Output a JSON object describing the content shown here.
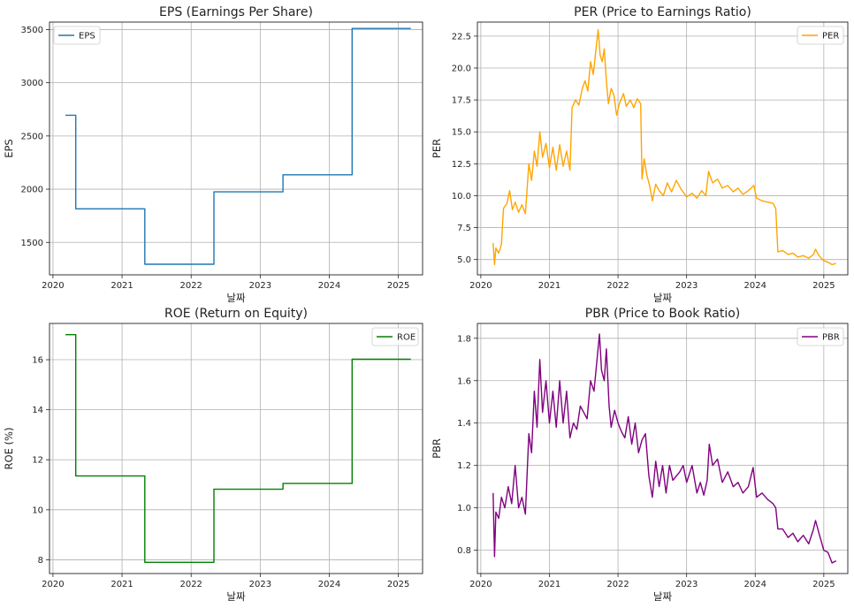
{
  "chart_data": [
    {
      "id": "eps",
      "type": "line",
      "step": true,
      "title": "EPS (Earnings Per Share)",
      "xlabel": "날짜",
      "ylabel": "EPS",
      "xlim": [
        2019.95,
        2025.35
      ],
      "ylim": [
        1195,
        3570
      ],
      "x_ticks": [
        2020,
        2021,
        2022,
        2023,
        2024,
        2025
      ],
      "y_ticks": [
        1500,
        2000,
        2500,
        3000,
        3500
      ],
      "grid": true,
      "legend": "top-left",
      "series": [
        {
          "name": "EPS",
          "color": "#1f77b4",
          "points": [
            [
              2020.18,
              2695
            ],
            [
              2020.33,
              2695
            ],
            [
              2020.33,
              1815
            ],
            [
              2021.33,
              1815
            ],
            [
              2021.33,
              1295
            ],
            [
              2022.33,
              1295
            ],
            [
              2022.33,
              1975
            ],
            [
              2023.33,
              1975
            ],
            [
              2023.33,
              2135
            ],
            [
              2024.33,
              2135
            ],
            [
              2024.33,
              3510
            ],
            [
              2025.18,
              3510
            ]
          ]
        }
      ]
    },
    {
      "id": "per",
      "type": "line",
      "title": "PER (Price to Earnings Ratio)",
      "xlabel": "날짜",
      "ylabel": "PER",
      "xlim": [
        2019.95,
        2025.35
      ],
      "ylim": [
        3.8,
        23.6
      ],
      "x_ticks": [
        2020,
        2021,
        2022,
        2023,
        2024,
        2025
      ],
      "y_ticks": [
        5.0,
        7.5,
        10.0,
        12.5,
        15.0,
        17.5,
        20.0,
        22.5
      ],
      "grid": true,
      "legend": "top-right",
      "series": [
        {
          "name": "PER",
          "color": "#ffa500",
          "points": [
            [
              2020.18,
              6.3
            ],
            [
              2020.2,
              4.6
            ],
            [
              2020.22,
              5.9
            ],
            [
              2020.26,
              5.5
            ],
            [
              2020.3,
              6.2
            ],
            [
              2020.33,
              9.0
            ],
            [
              2020.38,
              9.4
            ],
            [
              2020.42,
              10.4
            ],
            [
              2020.46,
              8.9
            ],
            [
              2020.5,
              9.5
            ],
            [
              2020.55,
              8.7
            ],
            [
              2020.6,
              9.3
            ],
            [
              2020.65,
              8.6
            ],
            [
              2020.7,
              12.5
            ],
            [
              2020.74,
              11.2
            ],
            [
              2020.78,
              13.5
            ],
            [
              2020.82,
              12.3
            ],
            [
              2020.86,
              15.0
            ],
            [
              2020.9,
              13.0
            ],
            [
              2020.95,
              14.1
            ],
            [
              2021.0,
              12.2
            ],
            [
              2021.05,
              13.8
            ],
            [
              2021.1,
              12.0
            ],
            [
              2021.15,
              14.0
            ],
            [
              2021.2,
              12.3
            ],
            [
              2021.25,
              13.5
            ],
            [
              2021.3,
              12.0
            ],
            [
              2021.33,
              16.9
            ],
            [
              2021.38,
              17.5
            ],
            [
              2021.43,
              17.1
            ],
            [
              2021.48,
              18.4
            ],
            [
              2021.52,
              19.0
            ],
            [
              2021.56,
              18.2
            ],
            [
              2021.6,
              20.5
            ],
            [
              2021.64,
              19.5
            ],
            [
              2021.68,
              21.5
            ],
            [
              2021.71,
              23.0
            ],
            [
              2021.74,
              21.0
            ],
            [
              2021.77,
              20.5
            ],
            [
              2021.8,
              21.5
            ],
            [
              2021.83,
              19.0
            ],
            [
              2021.86,
              17.2
            ],
            [
              2021.9,
              18.4
            ],
            [
              2021.94,
              17.9
            ],
            [
              2021.98,
              16.3
            ],
            [
              2022.02,
              17.2
            ],
            [
              2022.08,
              18.0
            ],
            [
              2022.12,
              17.0
            ],
            [
              2022.18,
              17.5
            ],
            [
              2022.23,
              16.9
            ],
            [
              2022.28,
              17.6
            ],
            [
              2022.33,
              17.2
            ],
            [
              2022.35,
              11.3
            ],
            [
              2022.38,
              12.9
            ],
            [
              2022.42,
              11.6
            ],
            [
              2022.46,
              10.8
            ],
            [
              2022.5,
              9.6
            ],
            [
              2022.55,
              10.9
            ],
            [
              2022.6,
              10.4
            ],
            [
              2022.66,
              10.0
            ],
            [
              2022.72,
              11.0
            ],
            [
              2022.78,
              10.3
            ],
            [
              2022.85,
              11.2
            ],
            [
              2022.92,
              10.5
            ],
            [
              2023.0,
              9.9
            ],
            [
              2023.08,
              10.2
            ],
            [
              2023.15,
              9.8
            ],
            [
              2023.22,
              10.4
            ],
            [
              2023.28,
              10.0
            ],
            [
              2023.32,
              11.9
            ],
            [
              2023.38,
              11.0
            ],
            [
              2023.45,
              11.3
            ],
            [
              2023.52,
              10.6
            ],
            [
              2023.6,
              10.8
            ],
            [
              2023.68,
              10.3
            ],
            [
              2023.75,
              10.6
            ],
            [
              2023.82,
              10.1
            ],
            [
              2023.9,
              10.4
            ],
            [
              2023.98,
              10.8
            ],
            [
              2024.02,
              9.8
            ],
            [
              2024.1,
              9.6
            ],
            [
              2024.18,
              9.5
            ],
            [
              2024.26,
              9.4
            ],
            [
              2024.3,
              9.0
            ],
            [
              2024.33,
              5.6
            ],
            [
              2024.4,
              5.7
            ],
            [
              2024.48,
              5.4
            ],
            [
              2024.55,
              5.5
            ],
            [
              2024.62,
              5.2
            ],
            [
              2024.7,
              5.3
            ],
            [
              2024.78,
              5.1
            ],
            [
              2024.85,
              5.4
            ],
            [
              2024.88,
              5.8
            ],
            [
              2024.93,
              5.3
            ],
            [
              2025.0,
              4.9
            ],
            [
              2025.06,
              4.8
            ],
            [
              2025.12,
              4.6
            ],
            [
              2025.18,
              4.7
            ]
          ]
        }
      ]
    },
    {
      "id": "roe",
      "type": "line",
      "step": true,
      "title": "ROE (Return on Equity)",
      "xlabel": "날짜",
      "ylabel": "ROE (%)",
      "xlim": [
        2019.95,
        2025.35
      ],
      "ylim": [
        7.45,
        17.45
      ],
      "x_ticks": [
        2020,
        2021,
        2022,
        2023,
        2024,
        2025
      ],
      "y_ticks": [
        8,
        10,
        12,
        14,
        16
      ],
      "grid": true,
      "legend": "top-right",
      "series": [
        {
          "name": "ROE",
          "color": "#008000",
          "points": [
            [
              2020.18,
              17.0
            ],
            [
              2020.33,
              17.0
            ],
            [
              2020.33,
              11.35
            ],
            [
              2021.33,
              11.35
            ],
            [
              2021.33,
              7.9
            ],
            [
              2022.33,
              7.9
            ],
            [
              2022.33,
              10.82
            ],
            [
              2023.33,
              10.82
            ],
            [
              2023.33,
              11.05
            ],
            [
              2024.33,
              11.05
            ],
            [
              2024.33,
              16.02
            ],
            [
              2025.18,
              16.02
            ]
          ]
        }
      ]
    },
    {
      "id": "pbr",
      "type": "line",
      "title": "PBR (Price to Book Ratio)",
      "xlabel": "날짜",
      "ylabel": "PBR",
      "xlim": [
        2019.95,
        2025.35
      ],
      "ylim": [
        0.69,
        1.87
      ],
      "x_ticks": [
        2020,
        2021,
        2022,
        2023,
        2024,
        2025
      ],
      "y_ticks": [
        0.8,
        1.0,
        1.2,
        1.4,
        1.6,
        1.8
      ],
      "grid": true,
      "legend": "top-right",
      "series": [
        {
          "name": "PBR",
          "color": "#800080",
          "points": [
            [
              2020.18,
              1.07
            ],
            [
              2020.2,
              0.77
            ],
            [
              2020.22,
              0.98
            ],
            [
              2020.26,
              0.95
            ],
            [
              2020.3,
              1.05
            ],
            [
              2020.35,
              1.0
            ],
            [
              2020.4,
              1.1
            ],
            [
              2020.45,
              1.02
            ],
            [
              2020.5,
              1.2
            ],
            [
              2020.55,
              1.0
            ],
            [
              2020.6,
              1.05
            ],
            [
              2020.65,
              0.97
            ],
            [
              2020.7,
              1.35
            ],
            [
              2020.74,
              1.26
            ],
            [
              2020.78,
              1.55
            ],
            [
              2020.82,
              1.38
            ],
            [
              2020.86,
              1.7
            ],
            [
              2020.9,
              1.45
            ],
            [
              2020.95,
              1.6
            ],
            [
              2021.0,
              1.4
            ],
            [
              2021.05,
              1.55
            ],
            [
              2021.1,
              1.38
            ],
            [
              2021.15,
              1.6
            ],
            [
              2021.2,
              1.4
            ],
            [
              2021.25,
              1.55
            ],
            [
              2021.3,
              1.33
            ],
            [
              2021.35,
              1.4
            ],
            [
              2021.4,
              1.37
            ],
            [
              2021.45,
              1.48
            ],
            [
              2021.5,
              1.45
            ],
            [
              2021.55,
              1.42
            ],
            [
              2021.6,
              1.6
            ],
            [
              2021.65,
              1.55
            ],
            [
              2021.7,
              1.72
            ],
            [
              2021.73,
              1.82
            ],
            [
              2021.76,
              1.65
            ],
            [
              2021.8,
              1.6
            ],
            [
              2021.83,
              1.75
            ],
            [
              2021.87,
              1.48
            ],
            [
              2021.9,
              1.38
            ],
            [
              2021.95,
              1.46
            ],
            [
              2022.0,
              1.4
            ],
            [
              2022.05,
              1.36
            ],
            [
              2022.1,
              1.33
            ],
            [
              2022.15,
              1.43
            ],
            [
              2022.2,
              1.3
            ],
            [
              2022.25,
              1.4
            ],
            [
              2022.3,
              1.26
            ],
            [
              2022.35,
              1.32
            ],
            [
              2022.4,
              1.35
            ],
            [
              2022.45,
              1.15
            ],
            [
              2022.5,
              1.05
            ],
            [
              2022.55,
              1.22
            ],
            [
              2022.6,
              1.1
            ],
            [
              2022.65,
              1.2
            ],
            [
              2022.7,
              1.07
            ],
            [
              2022.75,
              1.2
            ],
            [
              2022.8,
              1.13
            ],
            [
              2022.9,
              1.17
            ],
            [
              2022.95,
              1.2
            ],
            [
              2023.0,
              1.12
            ],
            [
              2023.08,
              1.2
            ],
            [
              2023.15,
              1.07
            ],
            [
              2023.2,
              1.12
            ],
            [
              2023.25,
              1.06
            ],
            [
              2023.3,
              1.13
            ],
            [
              2023.33,
              1.3
            ],
            [
              2023.38,
              1.2
            ],
            [
              2023.45,
              1.23
            ],
            [
              2023.52,
              1.12
            ],
            [
              2023.6,
              1.17
            ],
            [
              2023.68,
              1.1
            ],
            [
              2023.75,
              1.12
            ],
            [
              2023.82,
              1.07
            ],
            [
              2023.9,
              1.1
            ],
            [
              2023.97,
              1.19
            ],
            [
              2024.02,
              1.05
            ],
            [
              2024.1,
              1.07
            ],
            [
              2024.18,
              1.04
            ],
            [
              2024.26,
              1.02
            ],
            [
              2024.3,
              1.0
            ],
            [
              2024.33,
              0.9
            ],
            [
              2024.4,
              0.9
            ],
            [
              2024.48,
              0.86
            ],
            [
              2024.55,
              0.88
            ],
            [
              2024.62,
              0.84
            ],
            [
              2024.7,
              0.87
            ],
            [
              2024.78,
              0.83
            ],
            [
              2024.85,
              0.9
            ],
            [
              2024.88,
              0.94
            ],
            [
              2024.93,
              0.88
            ],
            [
              2025.0,
              0.8
            ],
            [
              2025.06,
              0.79
            ],
            [
              2025.12,
              0.74
            ],
            [
              2025.18,
              0.75
            ]
          ]
        }
      ]
    }
  ]
}
